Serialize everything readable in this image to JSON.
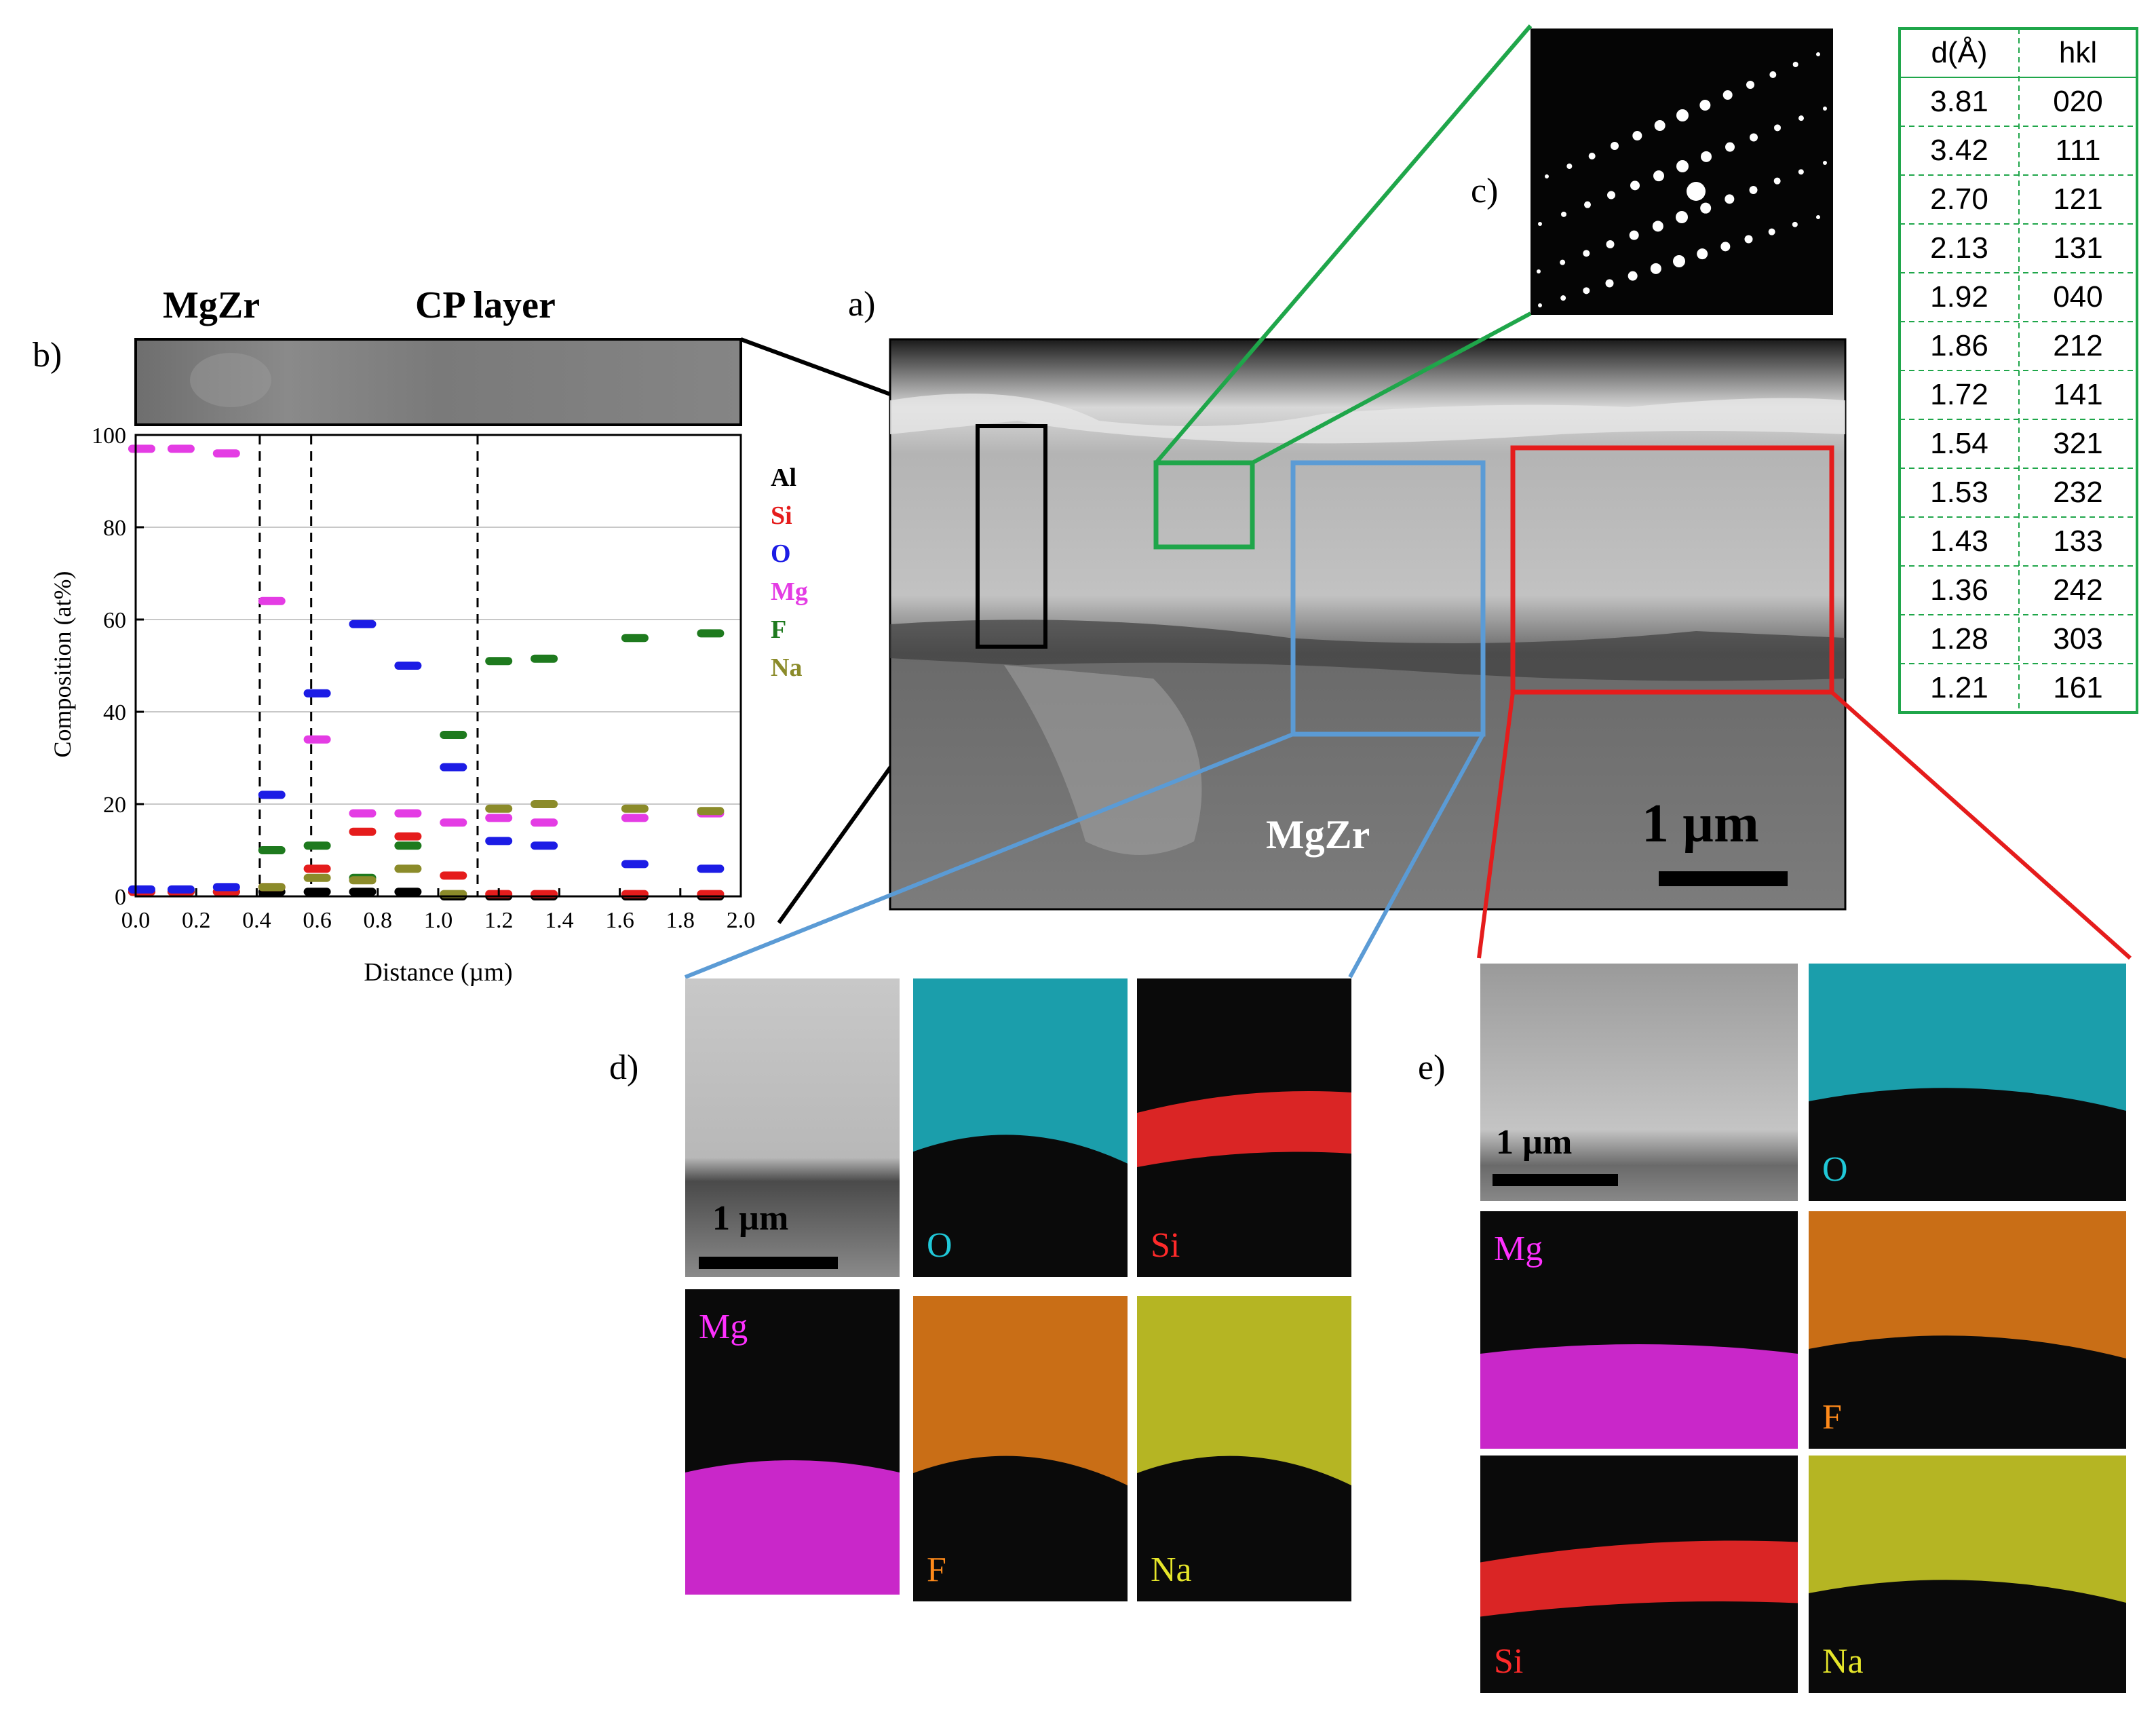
{
  "panel_labels": {
    "a": "a)",
    "b": "b)",
    "c": "c)",
    "d": "d)",
    "e": "e)"
  },
  "panel_a": {
    "region_label": "MgZr",
    "scalebar_label": "1 µm",
    "box_colors": {
      "line_profile": "#000000",
      "diffraction": "#1fa64a",
      "map_d": "#5b9bd5",
      "map_e": "#e51c1c"
    }
  },
  "panel_b": {
    "header_labels": [
      "MgZr",
      "CP layer"
    ],
    "chart_data": {
      "type": "scatter",
      "title": "",
      "xlabel": "Distance (µm)",
      "ylabel": "Composition (at%)",
      "xlim": [
        0.0,
        2.0
      ],
      "ylim": [
        0,
        100
      ],
      "xticks": [
        "0.0",
        "0.2",
        "0.4",
        "0.6",
        "0.8",
        "1.0",
        "1.2",
        "1.4",
        "1.6",
        "1.8",
        "2.0"
      ],
      "yticks": [
        "0",
        "20",
        "40",
        "60",
        "80",
        "100"
      ],
      "grid": "horizontal",
      "legend_position": "right",
      "boundaries": [
        0.41,
        0.58,
        1.13
      ],
      "series": [
        {
          "name": "Al",
          "color": "#000000",
          "x": [
            0.02,
            0.15,
            0.3,
            0.45,
            0.6,
            0.75,
            0.9,
            1.05,
            1.2,
            1.35,
            1.65,
            1.9
          ],
          "values": [
            1,
            1,
            1,
            1,
            1,
            1,
            1,
            0,
            0,
            0,
            0,
            0
          ]
        },
        {
          "name": "Si",
          "color": "#e51c1c",
          "x": [
            0.02,
            0.15,
            0.3,
            0.45,
            0.6,
            0.75,
            0.9,
            1.05,
            1.2,
            1.35,
            1.65,
            1.9
          ],
          "values": [
            1,
            1,
            1,
            2,
            6,
            14,
            13,
            4.5,
            0.5,
            0.5,
            0.5,
            0.5
          ]
        },
        {
          "name": "O",
          "color": "#1c1ce5",
          "x": [
            0.02,
            0.15,
            0.3,
            0.45,
            0.6,
            0.75,
            0.9,
            1.05,
            1.2,
            1.35,
            1.65,
            1.9
          ],
          "values": [
            1.5,
            1.5,
            2,
            22,
            44,
            59,
            50,
            28,
            12,
            11,
            7,
            6
          ]
        },
        {
          "name": "Mg",
          "color": "#e43ce4",
          "x": [
            0.02,
            0.15,
            0.3,
            0.45,
            0.6,
            0.75,
            0.9,
            1.05,
            1.2,
            1.35,
            1.65,
            1.9
          ],
          "values": [
            97,
            97,
            96,
            64,
            34,
            18,
            18,
            16,
            17,
            16,
            17,
            18
          ]
        },
        {
          "name": "F",
          "color": "#1e7a1e",
          "x": [
            0.45,
            0.6,
            0.75,
            0.9,
            1.05,
            1.2,
            1.35,
            1.65,
            1.9
          ],
          "values": [
            10,
            11,
            4,
            11,
            35,
            51,
            51.5,
            56,
            57
          ]
        },
        {
          "name": "Na",
          "color": "#8b8b2a",
          "x": [
            0.45,
            0.6,
            0.75,
            0.9,
            1.05,
            1.2,
            1.35,
            1.65,
            1.9
          ],
          "values": [
            2,
            4,
            3.5,
            6,
            0.5,
            19,
            20,
            19,
            18.5
          ]
        }
      ]
    }
  },
  "panel_c": {
    "table": {
      "headers": [
        "d(Å)",
        "hkl"
      ],
      "rows": [
        [
          "3.81",
          "020"
        ],
        [
          "3.42",
          "111"
        ],
        [
          "2.70",
          "121"
        ],
        [
          "2.13",
          "131"
        ],
        [
          "1.92",
          "040"
        ],
        [
          "1.86",
          "212"
        ],
        [
          "1.72",
          "141"
        ],
        [
          "1.54",
          "321"
        ],
        [
          "1.53",
          "232"
        ],
        [
          "1.43",
          "133"
        ],
        [
          "1.36",
          "242"
        ],
        [
          "1.28",
          "303"
        ],
        [
          "1.21",
          "161"
        ]
      ],
      "border_color": "#1fa64a"
    }
  },
  "panel_d": {
    "scalebar_label": "1 µm",
    "maps": [
      {
        "label": "O",
        "color": "#20c8d8"
      },
      {
        "label": "Si",
        "color": "#ff2a2a"
      },
      {
        "label": "Mg",
        "color": "#ff30ff"
      },
      {
        "label": "F",
        "color": "#ff8a1a"
      },
      {
        "label": "Na",
        "color": "#e6e62a"
      }
    ]
  },
  "panel_e": {
    "scalebar_label": "1 µm",
    "maps": [
      {
        "label": "O",
        "color": "#20c8d8"
      },
      {
        "label": "Mg",
        "color": "#ff30ff"
      },
      {
        "label": "F",
        "color": "#ff8a1a"
      },
      {
        "label": "Si",
        "color": "#ff2a2a"
      },
      {
        "label": "Na",
        "color": "#e6e62a"
      }
    ]
  }
}
